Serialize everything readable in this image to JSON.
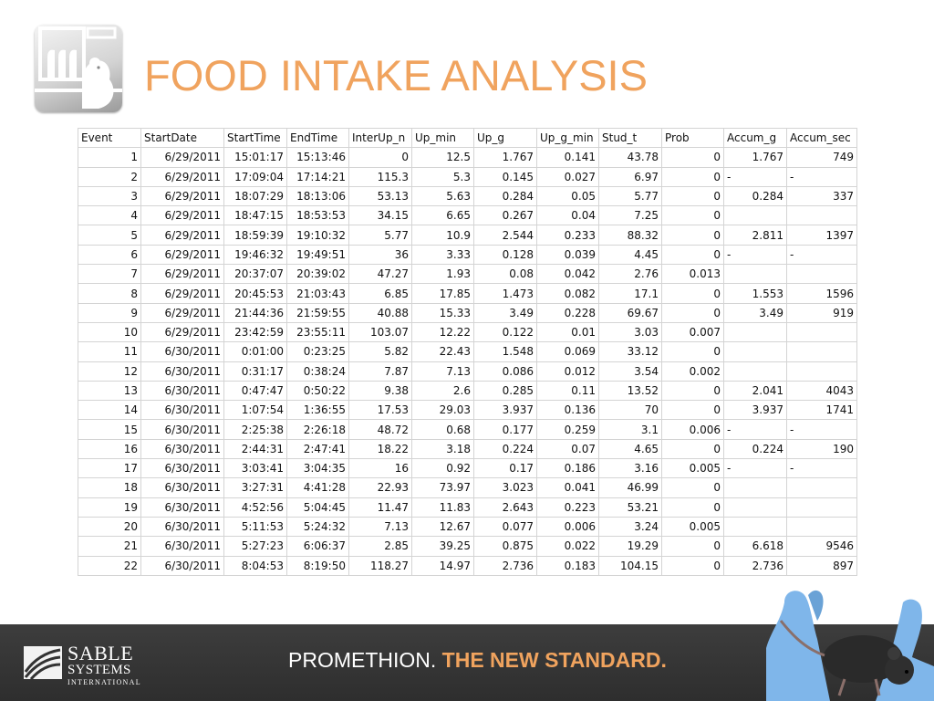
{
  "slide": {
    "title": "FOOD INTAKE ANALYSIS",
    "tagline": {
      "part1": "PROMETHION.",
      "part2": "THE NEW STANDARD."
    },
    "brand": {
      "line1": "SABLE",
      "line2": "SYSTEMS",
      "line3": "INTERNATIONAL"
    },
    "colors": {
      "accent": "#f0a35e",
      "footer": "#333333",
      "glove": "#7fb6ea"
    }
  },
  "table": {
    "headers": [
      "Event",
      "StartDate",
      "StartTime",
      "EndTime",
      "InterUp_n",
      "Up_min",
      "Up_g",
      "Up_g_min",
      "Stud_t",
      "Prob",
      "Accum_g",
      "Accum_sec"
    ],
    "rows": [
      [
        "1",
        "6/29/2011",
        "15:01:17",
        "15:13:46",
        "0",
        "12.5",
        "1.767",
        "0.141",
        "43.78",
        "0",
        "1.767",
        "749"
      ],
      [
        "2",
        "6/29/2011",
        "17:09:04",
        "17:14:21",
        "115.3",
        "5.3",
        "0.145",
        "0.027",
        "6.97",
        "0",
        "-",
        "-"
      ],
      [
        "3",
        "6/29/2011",
        "18:07:29",
        "18:13:06",
        "53.13",
        "5.63",
        "0.284",
        "0.05",
        "5.77",
        "0",
        "0.284",
        "337"
      ],
      [
        "4",
        "6/29/2011",
        "18:47:15",
        "18:53:53",
        "34.15",
        "6.65",
        "0.267",
        "0.04",
        "7.25",
        "0",
        "",
        ""
      ],
      [
        "5",
        "6/29/2011",
        "18:59:39",
        "19:10:32",
        "5.77",
        "10.9",
        "2.544",
        "0.233",
        "88.32",
        "0",
        "2.811",
        "1397"
      ],
      [
        "6",
        "6/29/2011",
        "19:46:32",
        "19:49:51",
        "36",
        "3.33",
        "0.128",
        "0.039",
        "4.45",
        "0",
        "-",
        "-"
      ],
      [
        "7",
        "6/29/2011",
        "20:37:07",
        "20:39:02",
        "47.27",
        "1.93",
        "0.08",
        "0.042",
        "2.76",
        "0.013",
        "",
        ""
      ],
      [
        "8",
        "6/29/2011",
        "20:45:53",
        "21:03:43",
        "6.85",
        "17.85",
        "1.473",
        "0.082",
        "17.1",
        "0",
        "1.553",
        "1596"
      ],
      [
        "9",
        "6/29/2011",
        "21:44:36",
        "21:59:55",
        "40.88",
        "15.33",
        "3.49",
        "0.228",
        "69.67",
        "0",
        "3.49",
        "919"
      ],
      [
        "10",
        "6/29/2011",
        "23:42:59",
        "23:55:11",
        "103.07",
        "12.22",
        "0.122",
        "0.01",
        "3.03",
        "0.007",
        "",
        ""
      ],
      [
        "11",
        "6/30/2011",
        "0:01:00",
        "0:23:25",
        "5.82",
        "22.43",
        "1.548",
        "0.069",
        "33.12",
        "0",
        "",
        ""
      ],
      [
        "12",
        "6/30/2011",
        "0:31:17",
        "0:38:24",
        "7.87",
        "7.13",
        "0.086",
        "0.012",
        "3.54",
        "0.002",
        "",
        ""
      ],
      [
        "13",
        "6/30/2011",
        "0:47:47",
        "0:50:22",
        "9.38",
        "2.6",
        "0.285",
        "0.11",
        "13.52",
        "0",
        "2.041",
        "4043"
      ],
      [
        "14",
        "6/30/2011",
        "1:07:54",
        "1:36:55",
        "17.53",
        "29.03",
        "3.937",
        "0.136",
        "70",
        "0",
        "3.937",
        "1741"
      ],
      [
        "15",
        "6/30/2011",
        "2:25:38",
        "2:26:18",
        "48.72",
        "0.68",
        "0.177",
        "0.259",
        "3.1",
        "0.006",
        "-",
        "-"
      ],
      [
        "16",
        "6/30/2011",
        "2:44:31",
        "2:47:41",
        "18.22",
        "3.18",
        "0.224",
        "0.07",
        "4.65",
        "0",
        "0.224",
        "190"
      ],
      [
        "17",
        "6/30/2011",
        "3:03:41",
        "3:04:35",
        "16",
        "0.92",
        "0.17",
        "0.186",
        "3.16",
        "0.005",
        "-",
        "-"
      ],
      [
        "18",
        "6/30/2011",
        "3:27:31",
        "4:41:28",
        "22.93",
        "73.97",
        "3.023",
        "0.041",
        "46.99",
        "0",
        "",
        ""
      ],
      [
        "19",
        "6/30/2011",
        "4:52:56",
        "5:04:45",
        "11.47",
        "11.83",
        "2.643",
        "0.223",
        "53.21",
        "0",
        "",
        ""
      ],
      [
        "20",
        "6/30/2011",
        "5:11:53",
        "5:24:32",
        "7.13",
        "12.67",
        "0.077",
        "0.006",
        "3.24",
        "0.005",
        "",
        ""
      ],
      [
        "21",
        "6/30/2011",
        "5:27:23",
        "6:06:37",
        "2.85",
        "39.25",
        "0.875",
        "0.022",
        "19.29",
        "0",
        "6.618",
        "9546"
      ],
      [
        "22",
        "6/30/2011",
        "8:04:53",
        "8:19:50",
        "118.27",
        "14.97",
        "2.736",
        "0.183",
        "104.15",
        "0",
        "2.736",
        "897"
      ]
    ]
  }
}
